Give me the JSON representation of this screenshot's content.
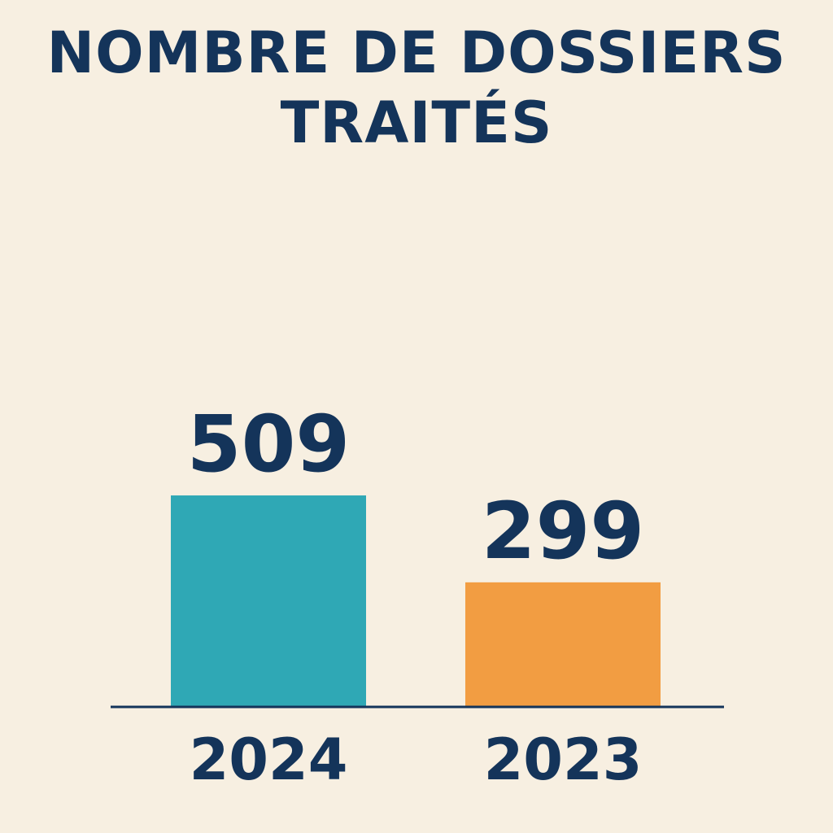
{
  "chart_data": {
    "type": "bar",
    "title_lines": [
      "NOMBRE DE DOSSIERS",
      "TRAITÉS"
    ],
    "categories": [
      "2024",
      "2023"
    ],
    "values": [
      509,
      299
    ],
    "data_labels": [
      "509",
      "299"
    ],
    "colors": [
      "#2fa8b5",
      "#f29d42"
    ],
    "axis_color": "#14345a",
    "text_color": "#14345a",
    "grid": false,
    "legend": "none"
  }
}
